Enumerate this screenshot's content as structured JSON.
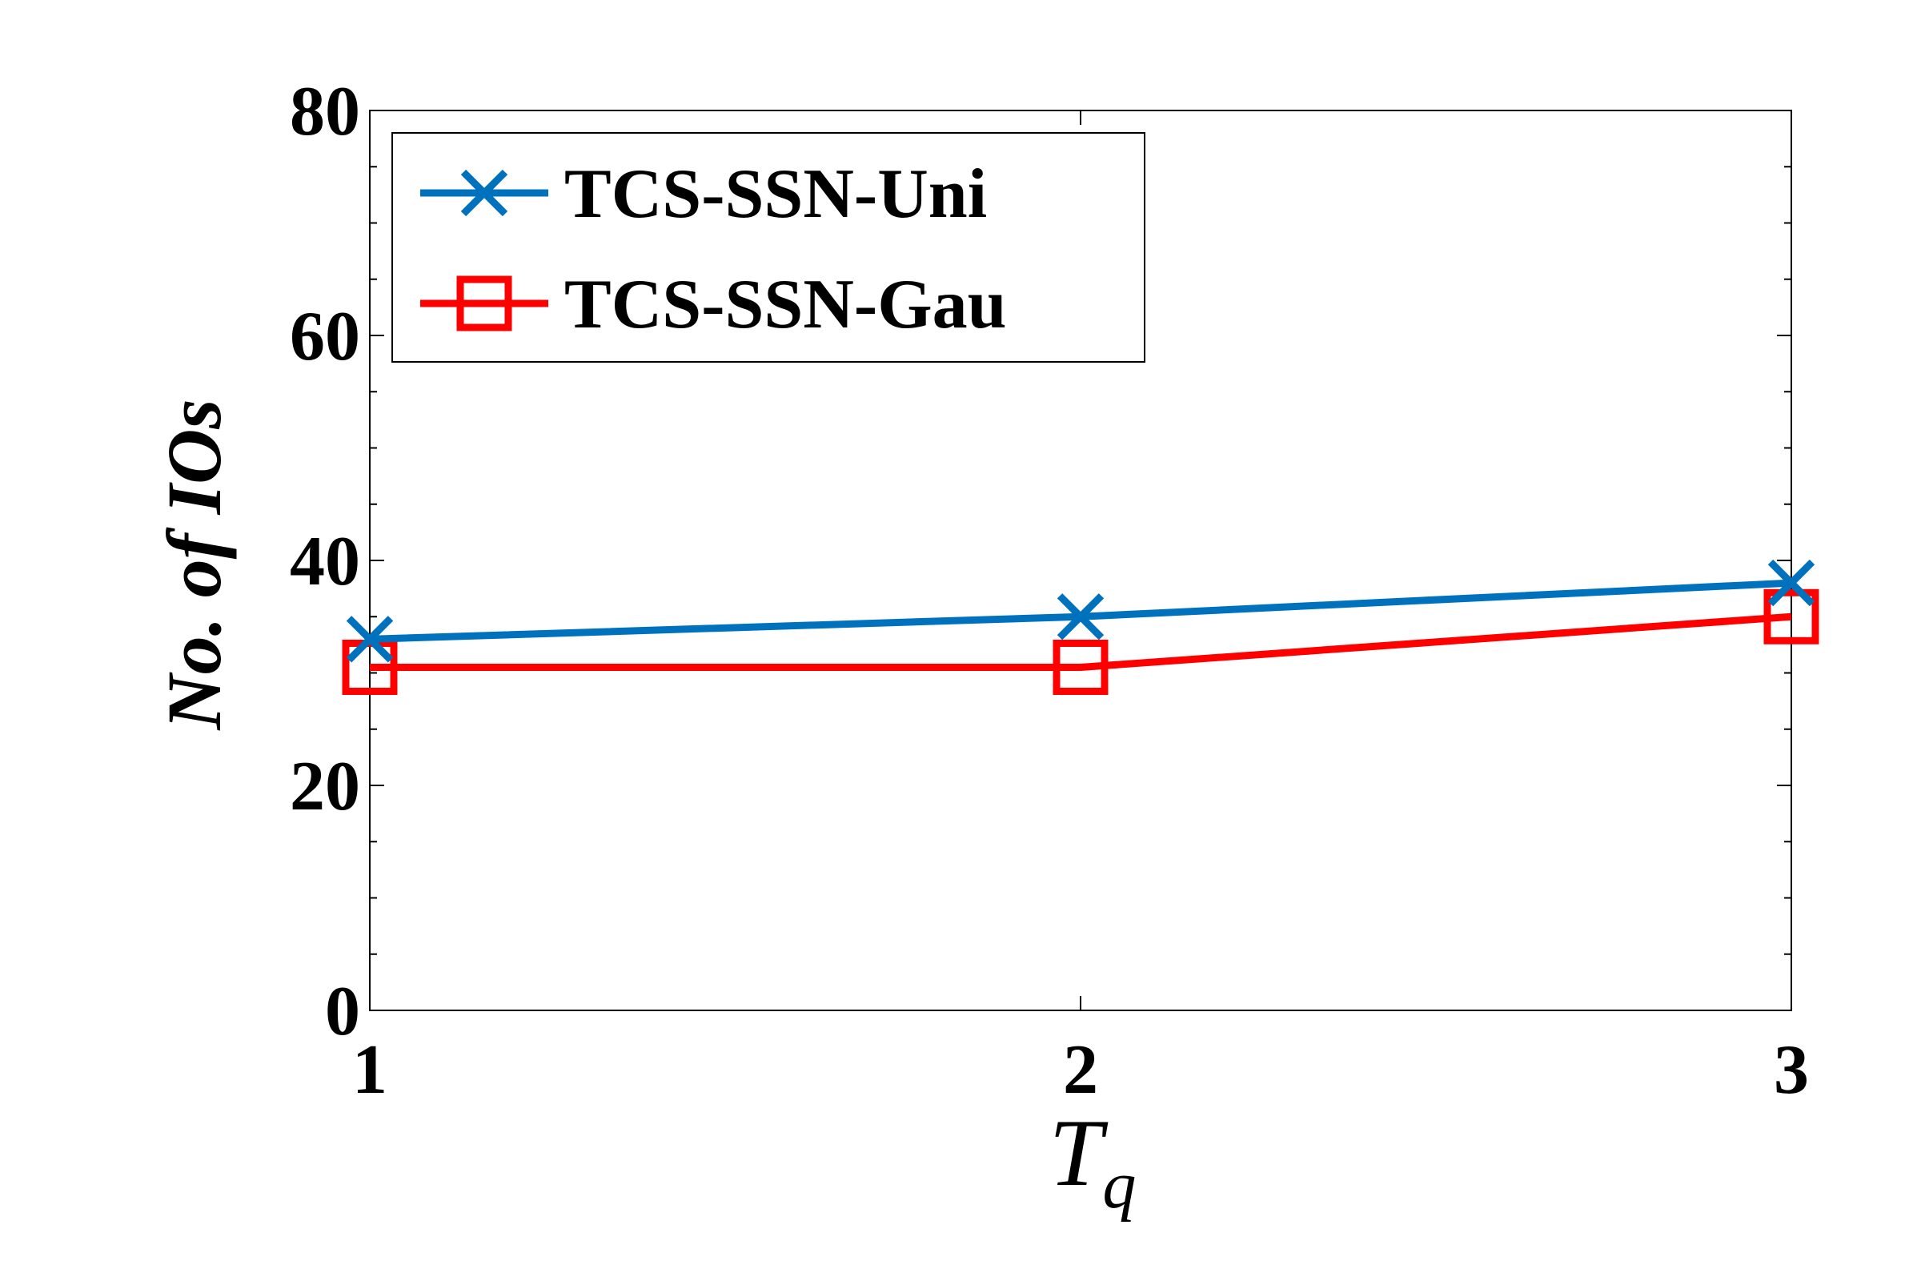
{
  "chart_data": {
    "type": "line",
    "title": "",
    "xlabel": "T",
    "xlabel_sub": "q",
    "ylabel": "No. of IOs",
    "x": [
      1,
      2,
      3
    ],
    "xticks": [
      1,
      2,
      3
    ],
    "xlim": [
      1,
      3
    ],
    "yticks": [
      0,
      20,
      40,
      60,
      80
    ],
    "ylim": [
      0,
      80
    ],
    "grid": false,
    "legend_position": "top-left",
    "series": [
      {
        "name": "TCS-SSN-Uni",
        "values": [
          33,
          35,
          38
        ],
        "color": "#0072bd",
        "marker": "x-mark"
      },
      {
        "name": "TCS-SSN-Gau",
        "values": [
          30.5,
          30.5,
          35
        ],
        "color": "#ff0000",
        "marker": "square"
      }
    ]
  }
}
